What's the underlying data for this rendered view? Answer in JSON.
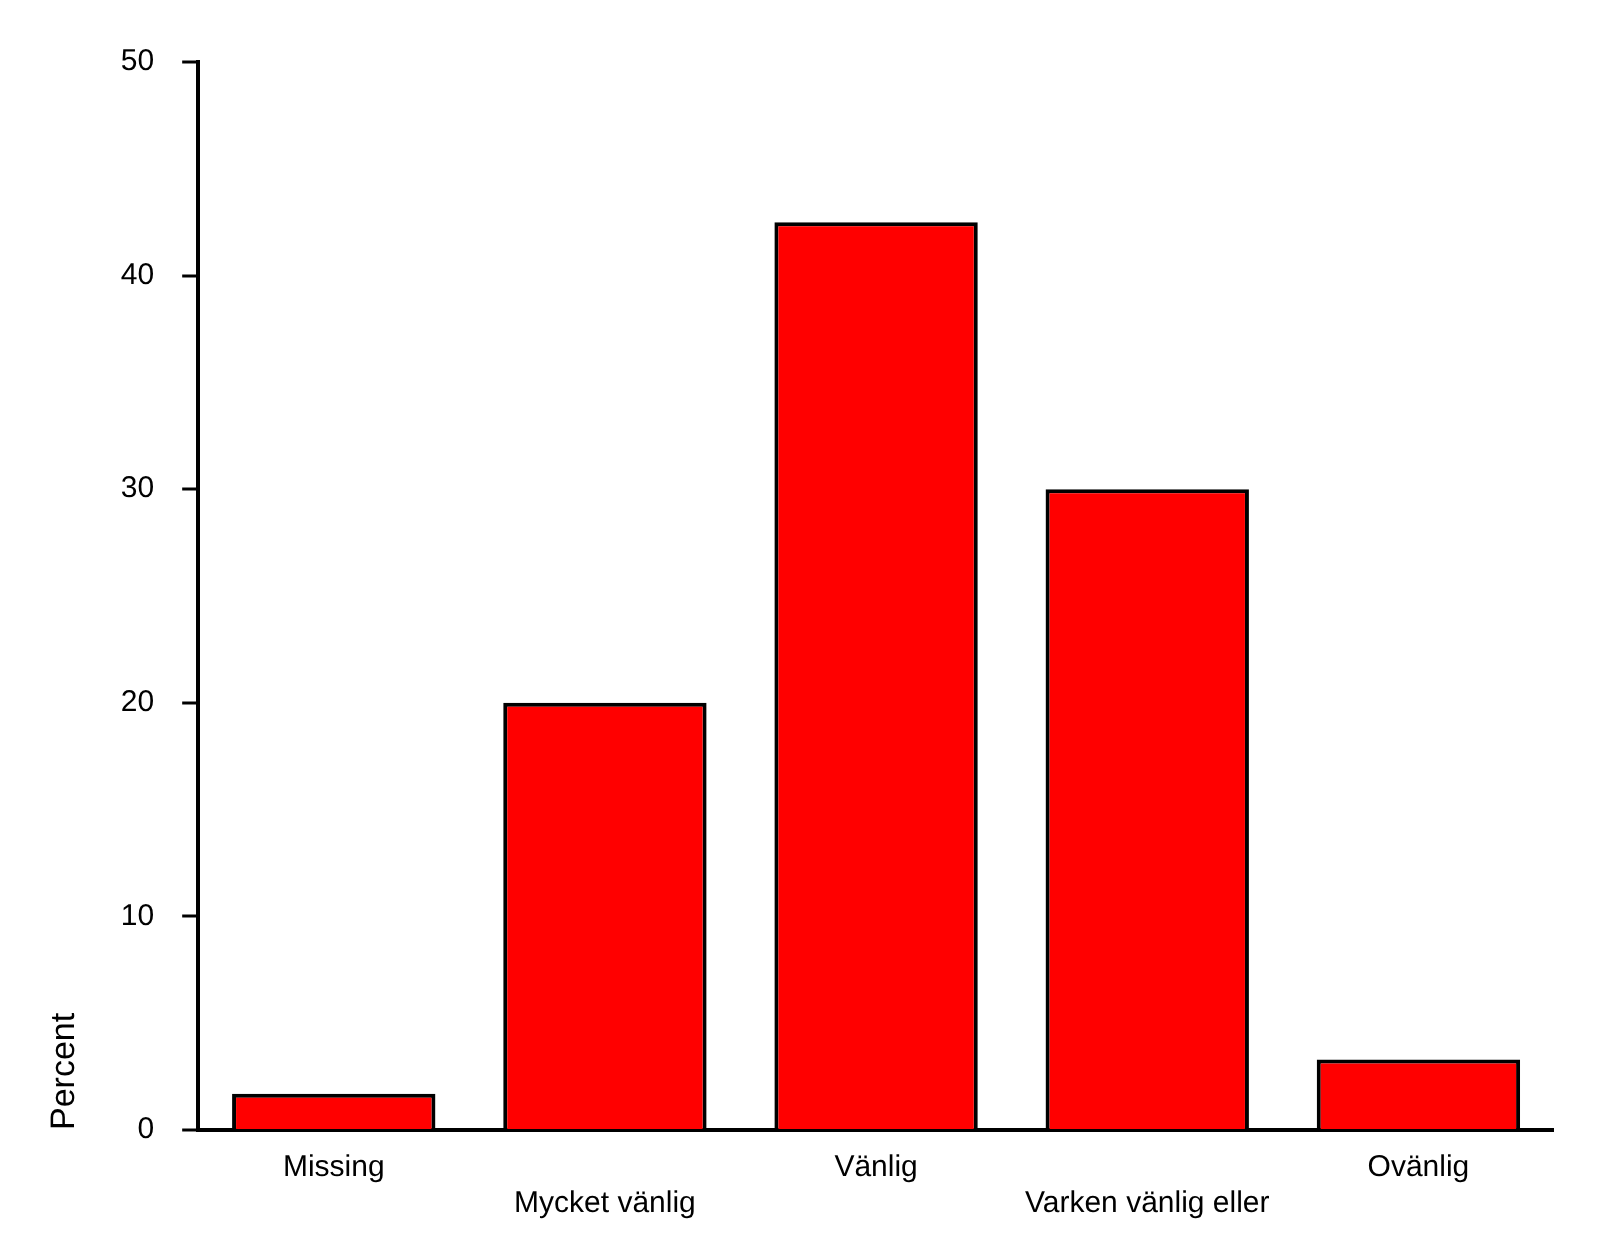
{
  "chart_data": {
    "type": "bar",
    "ylabel": "Percent",
    "categories": [
      "Missing",
      "Mycket vänlig",
      "Vänlig",
      "Varken vänlig eller",
      "Ovänlig"
    ],
    "values": [
      1.7,
      20,
      42.5,
      30,
      3.3
    ],
    "color": "#ff0000",
    "ylim": [
      0,
      50
    ],
    "yticks": [
      0,
      10,
      20,
      30,
      40,
      50
    ],
    "grid": false,
    "legend": false
  }
}
